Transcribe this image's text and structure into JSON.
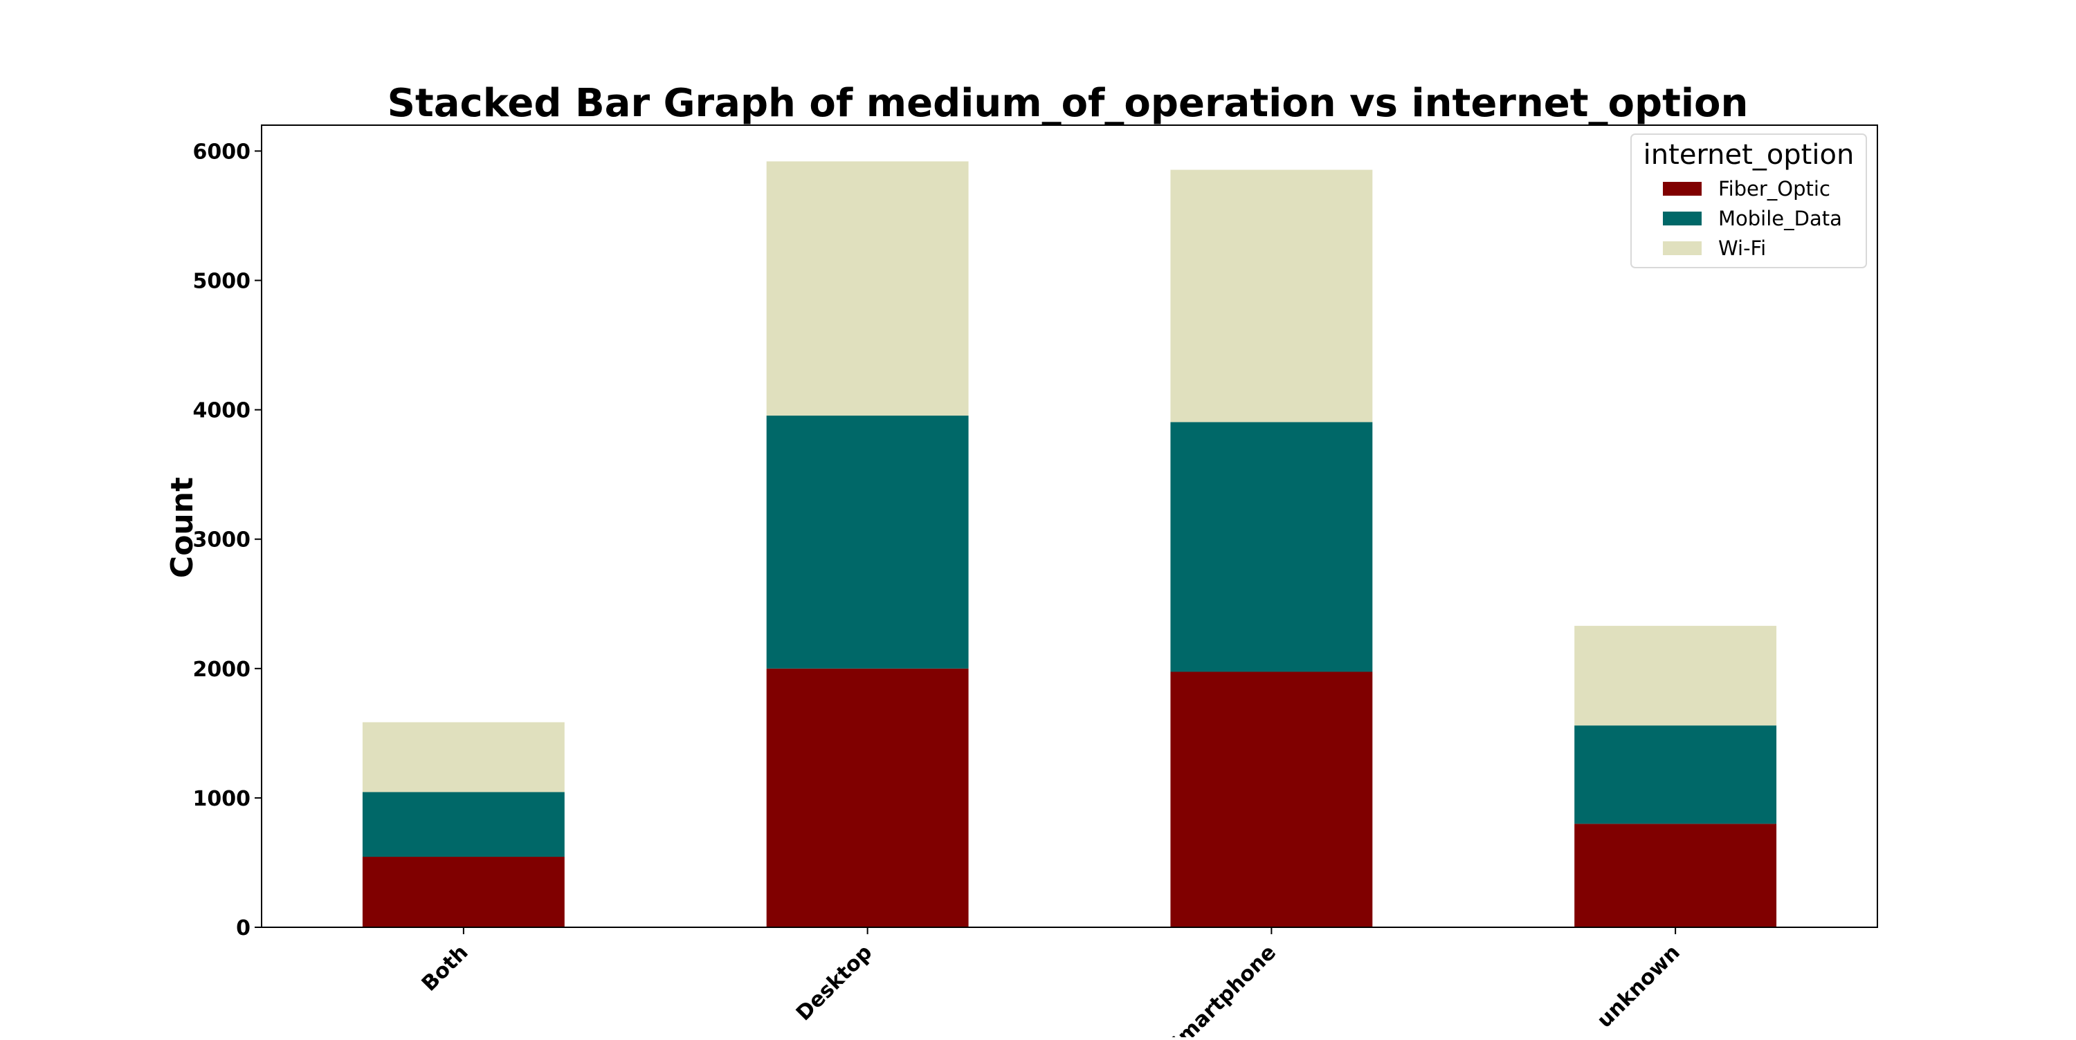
{
  "chart_data": {
    "type": "bar",
    "stacked": true,
    "title": "Stacked Bar Graph of medium_of_operation vs internet_option",
    "xlabel": "",
    "ylabel": "Count",
    "categories": [
      "Both",
      "Desktop",
      "Smartphone",
      "unknown"
    ],
    "series": [
      {
        "name": "Fiber_Optic",
        "values": [
          545,
          2000,
          1975,
          800
        ],
        "color": "#800000"
      },
      {
        "name": "Mobile_Data",
        "values": [
          500,
          1955,
          1930,
          760
        ],
        "color": "#006868"
      },
      {
        "name": "Wi-Fi",
        "values": [
          540,
          1965,
          1950,
          770
        ],
        "color": "#e0e0be"
      }
    ],
    "ylim": [
      0,
      6200
    ],
    "yticks": [
      0,
      1000,
      2000,
      3000,
      4000,
      5000,
      6000
    ],
    "legend": {
      "title": "internet_option",
      "placement": "top-right"
    },
    "grid": false
  }
}
